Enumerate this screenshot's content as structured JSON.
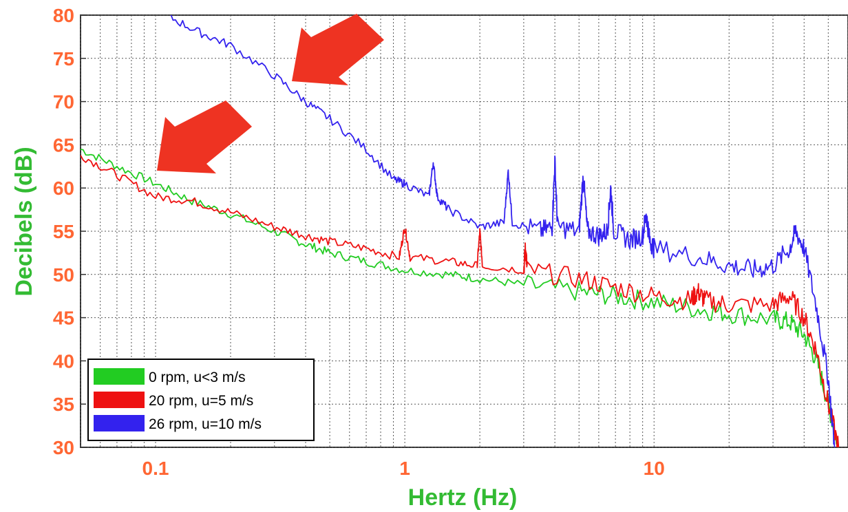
{
  "colors": {
    "tick_label": "#ff6633",
    "axis_title": "#33bb33",
    "arrow": "#ee3322",
    "grid": "#555555"
  },
  "chart_data": {
    "type": "line",
    "title": "",
    "xlabel": "Hertz (Hz)",
    "ylabel": "Decibels (dB)",
    "xscale": "log",
    "xlim": [
      0.05,
      60
    ],
    "ylim": [
      30,
      80
    ],
    "grid": true,
    "legend_position": "bottom-left",
    "x_ticks": [
      {
        "value": 0.1,
        "label": "0.1"
      },
      {
        "value": 1,
        "label": "1"
      },
      {
        "value": 10,
        "label": "10"
      }
    ],
    "y_ticks": [
      {
        "value": 30,
        "label": "30"
      },
      {
        "value": 35,
        "label": "35"
      },
      {
        "value": 40,
        "label": "40"
      },
      {
        "value": 45,
        "label": "45"
      },
      {
        "value": 50,
        "label": "50"
      },
      {
        "value": 55,
        "label": "55"
      },
      {
        "value": 60,
        "label": "60"
      },
      {
        "value": 65,
        "label": "65"
      },
      {
        "value": 70,
        "label": "70"
      },
      {
        "value": 75,
        "label": "75"
      },
      {
        "value": 80,
        "label": "80"
      }
    ],
    "series": [
      {
        "name": "0 rpm, u<3 m/s",
        "color": "#22cc22",
        "points": [
          [
            0.05,
            64.5
          ],
          [
            0.07,
            62.5
          ],
          [
            0.1,
            60.5
          ],
          [
            0.14,
            58.5
          ],
          [
            0.2,
            57
          ],
          [
            0.3,
            55
          ],
          [
            0.4,
            53.5
          ],
          [
            0.5,
            52.5
          ],
          [
            0.7,
            51.5
          ],
          [
            1,
            50.5
          ],
          [
            1.5,
            50
          ],
          [
            2,
            49.5
          ],
          [
            3,
            48.8
          ],
          [
            5,
            48
          ],
          [
            7,
            47.5
          ],
          [
            10,
            46.8
          ],
          [
            15,
            46
          ],
          [
            20,
            45.5
          ],
          [
            30,
            44.8
          ],
          [
            35,
            44.5
          ],
          [
            40,
            43
          ],
          [
            45,
            40
          ],
          [
            50,
            35
          ],
          [
            55,
            30
          ]
        ]
      },
      {
        "name": "20 rpm, u=5 m/s",
        "color": "#ee1111",
        "points": [
          [
            0.05,
            63.8
          ],
          [
            0.07,
            61.5
          ],
          [
            0.1,
            59
          ],
          [
            0.14,
            58.5
          ],
          [
            0.2,
            57.2
          ],
          [
            0.3,
            55.5
          ],
          [
            0.4,
            54.5
          ],
          [
            0.5,
            53.8
          ],
          [
            0.7,
            53
          ],
          [
            0.95,
            52
          ],
          [
            1,
            55.5
          ],
          [
            1.05,
            52
          ],
          [
            1.5,
            51.5
          ],
          [
            1.95,
            51
          ],
          [
            2,
            55
          ],
          [
            2.05,
            51
          ],
          [
            3,
            50.5
          ],
          [
            3.05,
            53
          ],
          [
            3.1,
            50.5
          ],
          [
            5,
            49.5
          ],
          [
            7,
            48.5
          ],
          [
            10,
            47.5
          ],
          [
            14,
            47
          ],
          [
            15,
            48
          ],
          [
            16,
            47
          ],
          [
            20,
            46.5
          ],
          [
            30,
            46.5
          ],
          [
            35,
            47.5
          ],
          [
            40,
            45
          ],
          [
            45,
            41
          ],
          [
            50,
            35
          ],
          [
            55,
            30
          ]
        ]
      },
      {
        "name": "26 rpm, u=10 m/s",
        "color": "#3322ee",
        "points": [
          [
            0.11,
            80
          ],
          [
            0.15,
            78
          ],
          [
            0.2,
            76.5
          ],
          [
            0.3,
            73
          ],
          [
            0.4,
            70
          ],
          [
            0.5,
            68
          ],
          [
            0.7,
            64.5
          ],
          [
            0.9,
            61
          ],
          [
            1,
            60.5
          ],
          [
            1.25,
            59
          ],
          [
            1.3,
            63
          ],
          [
            1.35,
            59
          ],
          [
            1.5,
            57.5
          ],
          [
            2,
            55.5
          ],
          [
            2.5,
            56
          ],
          [
            2.6,
            62
          ],
          [
            2.7,
            56
          ],
          [
            3.5,
            55
          ],
          [
            3.9,
            55.5
          ],
          [
            4,
            63
          ],
          [
            4.1,
            55.5
          ],
          [
            5,
            55
          ],
          [
            5.2,
            61.5
          ],
          [
            5.4,
            55
          ],
          [
            6,
            54.5
          ],
          [
            6.5,
            55
          ],
          [
            6.7,
            60
          ],
          [
            6.9,
            55
          ],
          [
            8,
            54
          ],
          [
            9,
            54.5
          ],
          [
            9.3,
            57
          ],
          [
            9.6,
            54
          ],
          [
            10,
            53
          ],
          [
            15,
            52
          ],
          [
            20,
            51
          ],
          [
            25,
            50.5
          ],
          [
            30,
            51
          ],
          [
            35,
            53
          ],
          [
            37,
            55
          ],
          [
            40,
            53
          ],
          [
            45,
            46
          ],
          [
            50,
            38
          ],
          [
            53,
            30
          ]
        ]
      }
    ]
  }
}
